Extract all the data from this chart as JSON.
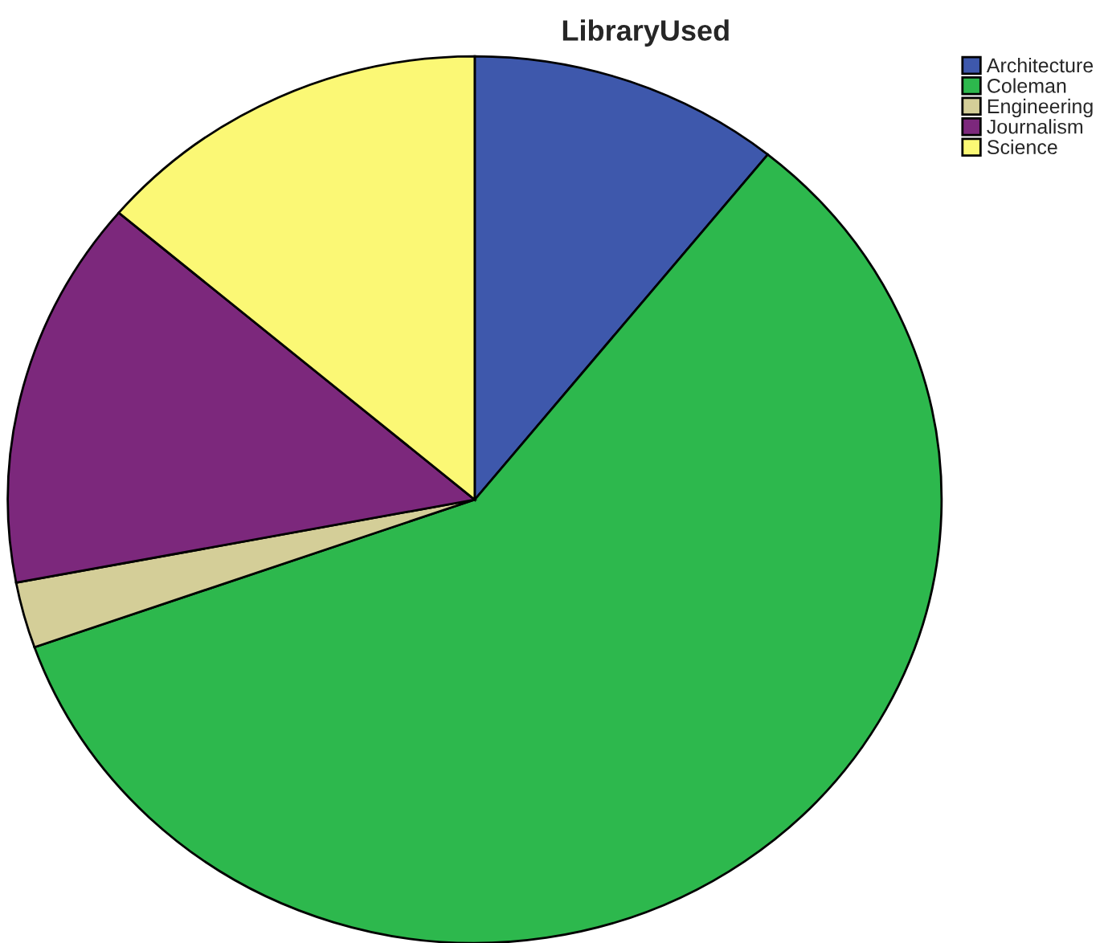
{
  "chart_data": {
    "type": "pie",
    "title": "LibraryUsed",
    "categories": [
      "Architecture",
      "Coleman",
      "Engineering",
      "Journalism",
      "Science"
    ],
    "values": [
      10.8,
      58.8,
      2.4,
      14.2,
      13.8
    ],
    "colors": [
      "#3e58ac",
      "#2db84d",
      "#d4ce98",
      "#7c287c",
      "#fbf875"
    ],
    "legend": "top right"
  }
}
